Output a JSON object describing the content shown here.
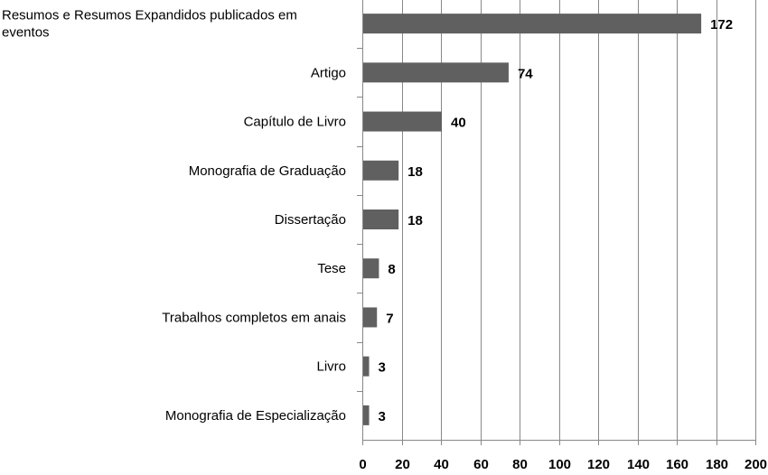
{
  "chart_data": {
    "type": "bar",
    "orientation": "horizontal",
    "categories": [
      [
        "Resumos e Resumos Expandidos publicados em",
        "eventos"
      ],
      [
        "Artigo"
      ],
      [
        "Capítulo de Livro"
      ],
      [
        "Monografia de Graduação"
      ],
      [
        "Dissertação"
      ],
      [
        "Tese"
      ],
      [
        "Trabalhos completos em anais"
      ],
      [
        "Livro"
      ],
      [
        "Monografia de Especialização"
      ]
    ],
    "values": [
      172,
      74,
      40,
      18,
      18,
      8,
      7,
      3,
      3
    ],
    "data_labels": [
      "172",
      "74",
      "40",
      "18",
      "18",
      "8",
      "7",
      "3",
      "3"
    ],
    "xlim": [
      0,
      200
    ],
    "xticks": [
      "0",
      "20",
      "40",
      "60",
      "80",
      "100",
      "120",
      "140",
      "160",
      "180",
      "200"
    ],
    "xtick_values": [
      0,
      20,
      40,
      60,
      80,
      100,
      120,
      140,
      160,
      180,
      200
    ],
    "grid": "vertical",
    "legend": "none",
    "bar_color": "#606060",
    "grid_color": "#888888",
    "axis_color": "#888888"
  }
}
